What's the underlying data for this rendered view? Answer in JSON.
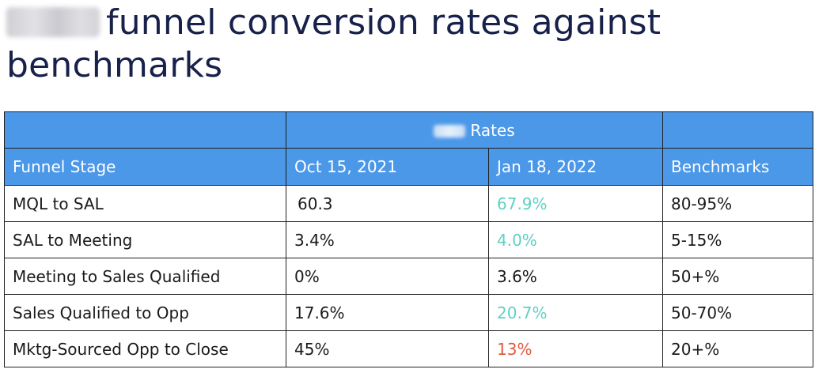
{
  "title": {
    "text": "funnel conversion rates against benchmarks",
    "redacted_prefix": true
  },
  "table": {
    "group_header": "Rates",
    "columns": [
      "Funnel Stage",
      "Oct 15, 2021",
      "Jan 18, 2022",
      "Benchmarks"
    ],
    "rows": [
      {
        "stage": "MQL to SAL",
        "oct": " 60.3",
        "jan": "67.9%",
        "jan_color": "teal",
        "bench": "80-95%"
      },
      {
        "stage": "SAL to Meeting",
        "oct": "3.4%",
        "jan": "4.0%",
        "jan_color": "teal",
        "bench": "5-15%"
      },
      {
        "stage": "Meeting to Sales Qualified",
        "oct": "0%",
        "jan": "3.6%",
        "jan_color": "normal",
        "bench": "50+%"
      },
      {
        "stage": "Sales Qualified to Opp",
        "oct": "17.6%",
        "jan": "20.7%",
        "jan_color": "teal",
        "bench": "50-70%"
      },
      {
        "stage": "Mktg-Sourced Opp to Close",
        "oct": "45%",
        "jan": "13%",
        "jan_color": "red",
        "bench": "20+%"
      }
    ]
  },
  "colors": {
    "header_bg": "#4b97e8",
    "title_text": "#18214a",
    "teal": "#5fd0c3",
    "red": "#e5573a"
  }
}
